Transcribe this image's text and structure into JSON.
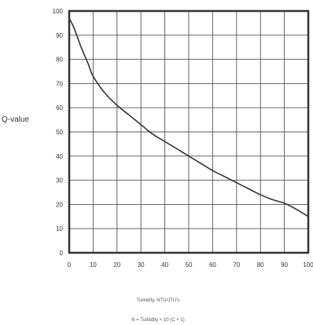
{
  "chart_data": {
    "type": "line",
    "title": "",
    "xlabel": "Turbidity, NTU/JTU's",
    "ylabel": "Q-value",
    "caption": "N = Turbidity × 10 (C + 1)",
    "xlim": [
      0,
      100
    ],
    "ylim": [
      0,
      100
    ],
    "x_ticks": [
      0,
      10,
      20,
      30,
      40,
      50,
      60,
      70,
      80,
      90,
      100
    ],
    "y_ticks": [
      0,
      10,
      20,
      30,
      40,
      50,
      60,
      70,
      80,
      90,
      100
    ],
    "grid": true,
    "series": [
      {
        "x": [
          0,
          2,
          5,
          8,
          10,
          15,
          20,
          25,
          30,
          35,
          40,
          45,
          50,
          55,
          60,
          65,
          70,
          75,
          80,
          85,
          90,
          95,
          100
        ],
        "y": [
          97,
          93,
          85,
          78,
          73,
          66,
          61,
          57,
          53,
          49,
          46,
          43,
          40,
          37,
          34,
          31.5,
          29,
          26.5,
          24,
          22,
          20.5,
          18,
          15
        ]
      }
    ],
    "line_color": "#333333"
  }
}
